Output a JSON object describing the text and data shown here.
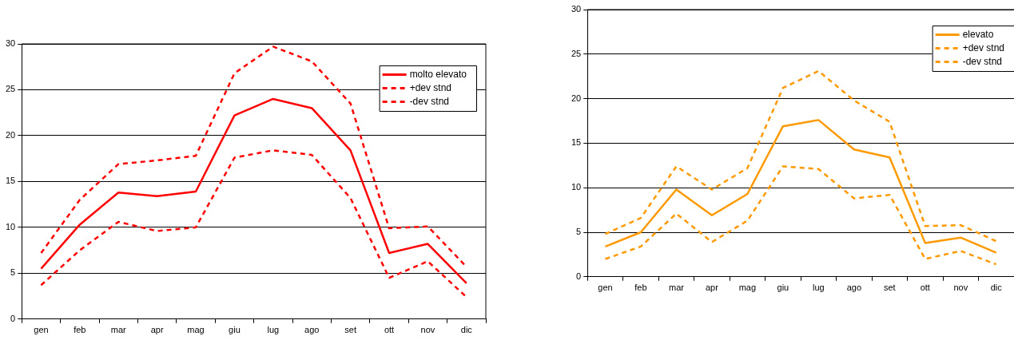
{
  "chart_data": [
    {
      "type": "line",
      "categories": [
        "gen",
        "feb",
        "mar",
        "apr",
        "mag",
        "giu",
        "lug",
        "ago",
        "set",
        "ott",
        "nov",
        "dic"
      ],
      "ylim": [
        0,
        30
      ],
      "yticks": [
        0,
        5,
        10,
        15,
        20,
        25,
        30
      ],
      "grid": "y",
      "legend": "top right",
      "marker": "none",
      "series": [
        {
          "name": "molto elevato",
          "color": "#ff0000",
          "line_style": "solid",
          "values": [
            5.5,
            10.3,
            13.8,
            13.4,
            13.9,
            22.2,
            24.0,
            23.0,
            18.4,
            7.2,
            8.2,
            3.9
          ]
        },
        {
          "name": "+dev stnd",
          "color": "#ff0000",
          "line_style": "dashed",
          "values": [
            7.2,
            13.0,
            16.9,
            17.3,
            17.8,
            26.8,
            29.7,
            28.1,
            23.5,
            9.9,
            10.1,
            5.7
          ]
        },
        {
          "name": "-dev stnd",
          "color": "#ff0000",
          "line_style": "dashed",
          "values": [
            3.7,
            7.5,
            10.6,
            9.6,
            10.0,
            17.6,
            18.4,
            17.9,
            13.2,
            4.5,
            6.3,
            2.4
          ]
        }
      ]
    },
    {
      "type": "line",
      "categories": [
        "gen",
        "feb",
        "mar",
        "apr",
        "mag",
        "giu",
        "lug",
        "ago",
        "set",
        "ott",
        "nov",
        "dic"
      ],
      "ylim": [
        0,
        30
      ],
      "yticks": [
        0,
        5,
        10,
        15,
        20,
        25,
        30
      ],
      "grid": "y",
      "legend": "top right",
      "marker": "none",
      "series": [
        {
          "name": "elevato",
          "color": "#ff9900",
          "line_style": "solid",
          "values": [
            3.4,
            5.0,
            9.8,
            6.9,
            9.3,
            16.9,
            17.6,
            14.3,
            13.4,
            3.8,
            4.4,
            2.7
          ]
        },
        {
          "name": "+dev stnd",
          "color": "#ff9900",
          "line_style": "dashed",
          "values": [
            4.8,
            6.6,
            12.4,
            9.8,
            12.2,
            21.2,
            23.1,
            19.8,
            17.4,
            5.7,
            5.8,
            4.0
          ]
        },
        {
          "name": "-dev stnd",
          "color": "#ff9900",
          "line_style": "dashed",
          "values": [
            2.0,
            3.4,
            7.1,
            3.9,
            6.3,
            12.4,
            12.1,
            8.8,
            9.2,
            2.0,
            2.9,
            1.4
          ]
        }
      ]
    }
  ]
}
